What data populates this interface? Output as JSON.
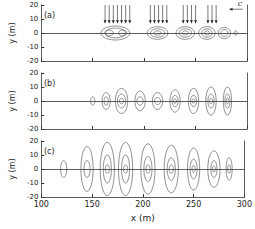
{
  "chart_data": [
    {
      "type": "contour",
      "title": "(a)",
      "ylabel": "y (m)",
      "xlim": [
        100,
        300
      ],
      "ylim": [
        -20,
        20
      ],
      "xticks": [
        100,
        150,
        200,
        250,
        300
      ],
      "yticks": [
        -20,
        -10,
        0,
        10,
        20
      ],
      "tick_labels": "y",
      "contours": [
        {
          "x": 172,
          "y": 0,
          "rx": 14,
          "ry": 5
        },
        {
          "x": 172,
          "y": 0,
          "rx": 10,
          "ry": 3.5
        },
        {
          "x": 166,
          "y": 0,
          "rx": 4,
          "ry": 2
        },
        {
          "x": 179,
          "y": 0,
          "rx": 4,
          "ry": 2
        },
        {
          "x": 213,
          "y": 0,
          "rx": 10,
          "ry": 4.5
        },
        {
          "x": 213,
          "y": 0,
          "rx": 7,
          "ry": 3
        },
        {
          "x": 213,
          "y": 0,
          "rx": 3.5,
          "ry": 1.5
        },
        {
          "x": 240,
          "y": 0,
          "rx": 9,
          "ry": 4.5
        },
        {
          "x": 240,
          "y": 0,
          "rx": 6,
          "ry": 3
        },
        {
          "x": 240,
          "y": 0,
          "rx": 3,
          "ry": 1.5
        },
        {
          "x": 261,
          "y": 0,
          "rx": 8,
          "ry": 4.5
        },
        {
          "x": 261,
          "y": 0,
          "rx": 5,
          "ry": 3
        },
        {
          "x": 261,
          "y": 0,
          "rx": 2.5,
          "ry": 1.5
        },
        {
          "x": 278,
          "y": 0,
          "rx": 6,
          "ry": 4
        },
        {
          "x": 278,
          "y": 0,
          "rx": 3.5,
          "ry": 2.5
        },
        {
          "x": 289,
          "y": 0,
          "rx": 1.5,
          "ry": 1.5
        }
      ],
      "arrows_x": [
        162,
        166,
        170,
        174,
        178,
        182,
        186,
        206,
        210,
        214,
        218,
        222,
        238,
        242,
        246,
        250,
        262,
        266,
        270
      ],
      "arrow_y": [
        20,
        7
      ],
      "wave_arrow": {
        "from": 296,
        "to": 283,
        "y": 17,
        "label": "c"
      }
    },
    {
      "type": "contour",
      "title": "(b)",
      "ylabel": "y (m)",
      "xlim": [
        100,
        300
      ],
      "ylim": [
        -20,
        20
      ],
      "xticks": [
        100,
        150,
        200,
        250,
        300
      ],
      "yticks": [
        -20,
        -10,
        0,
        10,
        20
      ],
      "tick_labels": "y",
      "contours": [
        {
          "x": 150,
          "y": 0,
          "rx": 2,
          "ry": 3
        },
        {
          "x": 163,
          "y": 0,
          "rx": 4,
          "ry": 6
        },
        {
          "x": 163,
          "y": 0,
          "rx": 2,
          "ry": 3
        },
        {
          "x": 178,
          "y": 0,
          "rx": 6,
          "ry": 9
        },
        {
          "x": 178,
          "y": 0,
          "rx": 4,
          "ry": 5
        },
        {
          "x": 178,
          "y": 0,
          "rx": 2,
          "ry": 2
        },
        {
          "x": 196,
          "y": 0,
          "rx": 5,
          "ry": 7
        },
        {
          "x": 196,
          "y": 0,
          "rx": 3,
          "ry": 3
        },
        {
          "x": 213,
          "y": 0,
          "rx": 5,
          "ry": 6
        },
        {
          "x": 213,
          "y": 0,
          "rx": 3,
          "ry": 2.5
        },
        {
          "x": 230,
          "y": 0,
          "rx": 5,
          "ry": 8
        },
        {
          "x": 230,
          "y": 0,
          "rx": 3,
          "ry": 4
        },
        {
          "x": 230,
          "y": 0,
          "rx": 1.5,
          "ry": 1.5
        },
        {
          "x": 248,
          "y": 0,
          "rx": 5,
          "ry": 9
        },
        {
          "x": 248,
          "y": 0,
          "rx": 3,
          "ry": 4
        },
        {
          "x": 248,
          "y": 0,
          "rx": 1.5,
          "ry": 1.5
        },
        {
          "x": 265,
          "y": 0,
          "rx": 5,
          "ry": 10
        },
        {
          "x": 265,
          "y": 0,
          "rx": 3,
          "ry": 5
        },
        {
          "x": 265,
          "y": 0,
          "rx": 1.5,
          "ry": 2
        },
        {
          "x": 281,
          "y": 0,
          "rx": 4,
          "ry": 10
        },
        {
          "x": 281,
          "y": 0,
          "rx": 2.5,
          "ry": 5
        },
        {
          "x": 281,
          "y": 0,
          "rx": 1.2,
          "ry": 2
        }
      ]
    },
    {
      "type": "contour",
      "title": "(c)",
      "ylabel": "y (m)",
      "xlabel": "x (m)",
      "xlim": [
        100,
        300
      ],
      "ylim": [
        -20,
        20
      ],
      "xticks": [
        100,
        150,
        200,
        250,
        300
      ],
      "yticks": [
        -20,
        -10,
        0,
        10,
        20
      ],
      "contours": [
        {
          "x": 122,
          "y": 0,
          "rx": 3,
          "ry": 6
        },
        {
          "x": 145,
          "y": 0,
          "rx": 6,
          "ry": 16
        },
        {
          "x": 145,
          "y": 0,
          "rx": 3,
          "ry": 6
        },
        {
          "x": 165,
          "y": 0,
          "rx": 7,
          "ry": 19
        },
        {
          "x": 165,
          "y": 0,
          "rx": 4,
          "ry": 10
        },
        {
          "x": 165,
          "y": 0,
          "rx": 2,
          "ry": 3
        },
        {
          "x": 183,
          "y": 0,
          "rx": 7,
          "ry": 19
        },
        {
          "x": 183,
          "y": 0,
          "rx": 4,
          "ry": 10
        },
        {
          "x": 183,
          "y": 0,
          "rx": 2,
          "ry": 3
        },
        {
          "x": 205,
          "y": 0,
          "rx": 7,
          "ry": 18
        },
        {
          "x": 205,
          "y": 0,
          "rx": 4,
          "ry": 9
        },
        {
          "x": 205,
          "y": 0,
          "rx": 2,
          "ry": 3
        },
        {
          "x": 228,
          "y": 0,
          "rx": 7,
          "ry": 17
        },
        {
          "x": 228,
          "y": 0,
          "rx": 4,
          "ry": 8
        },
        {
          "x": 228,
          "y": 0,
          "rx": 2,
          "ry": 3
        },
        {
          "x": 250,
          "y": 0,
          "rx": 6,
          "ry": 15
        },
        {
          "x": 250,
          "y": 0,
          "rx": 3.5,
          "ry": 7
        },
        {
          "x": 250,
          "y": 0,
          "rx": 1.5,
          "ry": 2.5
        },
        {
          "x": 270,
          "y": 0,
          "rx": 6,
          "ry": 13
        },
        {
          "x": 270,
          "y": 0,
          "rx": 3,
          "ry": 6
        },
        {
          "x": 270,
          "y": 0,
          "rx": 1.5,
          "ry": 2
        },
        {
          "x": 285,
          "y": 0,
          "rx": 3,
          "ry": 8
        },
        {
          "x": 285,
          "y": 0,
          "rx": 1.5,
          "ry": 3
        }
      ]
    }
  ]
}
